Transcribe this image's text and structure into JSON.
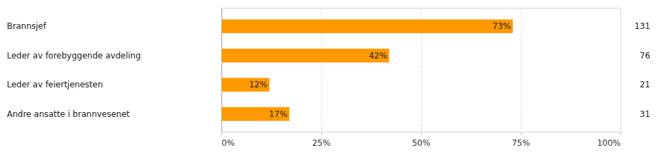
{
  "chart_data": {
    "type": "bar",
    "orientation": "horizontal",
    "categories": [
      "Brannsjef",
      "Leder av forebyggende avdeling",
      "Leder av feiertjenesten",
      "Andre ansatte i brannvesenet"
    ],
    "values": [
      73,
      42,
      12,
      17
    ],
    "value_labels": [
      "73%",
      "42%",
      "12%",
      "17%"
    ],
    "counts": [
      131,
      76,
      21,
      31
    ],
    "color": "#ff9900",
    "xlim": [
      0,
      100
    ],
    "xticks": [
      {
        "value": 0,
        "label": "0%"
      },
      {
        "value": 25,
        "label": "25%"
      },
      {
        "value": 50,
        "label": "50%"
      },
      {
        "value": 75,
        "label": "75%"
      },
      {
        "value": 100,
        "label": "100%"
      }
    ],
    "grid": true,
    "data_labels": true
  }
}
